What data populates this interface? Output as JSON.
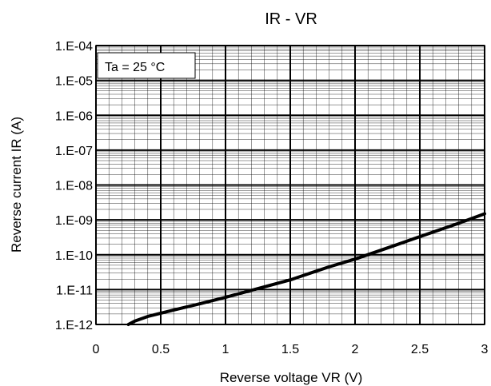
{
  "chart_data": {
    "type": "line",
    "title": "IR - VR",
    "xlabel": "Reverse voltage VR (V)",
    "ylabel": "Reverse current IR (A)",
    "annotation": "Ta = 25 °C",
    "xlim": [
      0,
      3
    ],
    "ylim": [
      1e-12,
      0.0001
    ],
    "y_scale": "log",
    "grid": true,
    "x_ticks": [
      0,
      0.5,
      1,
      1.5,
      2,
      2.5,
      3
    ],
    "x_tick_labels": [
      "0",
      "0.5",
      "1",
      "1.5",
      "2",
      "2.5",
      "3"
    ],
    "y_ticks": [
      1e-12,
      1e-11,
      1e-10,
      1e-09,
      1e-08,
      1e-07,
      1e-06,
      1e-05,
      0.0001
    ],
    "y_tick_labels": [
      "1.E-12",
      "1.E-11",
      "1.E-10",
      "1.E-09",
      "1.E-08",
      "1.E-07",
      "1.E-06",
      "1.E-05",
      "1.E-04"
    ],
    "series": [
      {
        "color": "#000000",
        "x": [
          0.25,
          0.3,
          0.4,
          0.5,
          0.6,
          0.8,
          1.0,
          1.2,
          1.5,
          1.8,
          2.0,
          2.2,
          2.5,
          2.8,
          3.0
        ],
        "y": [
          1e-12,
          1.25e-12,
          1.7e-12,
          2.1e-12,
          2.6e-12,
          3.9e-12,
          6e-12,
          9.5e-12,
          1.9e-11,
          4.5e-11,
          7.5e-11,
          1.35e-10,
          3.3e-10,
          8e-10,
          1.5e-09
        ]
      }
    ]
  }
}
